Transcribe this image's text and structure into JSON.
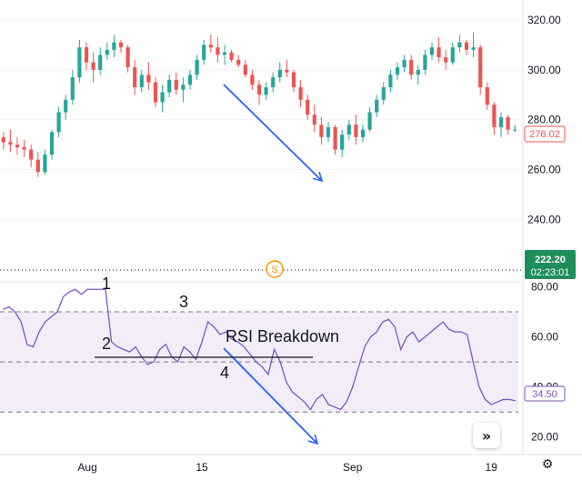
{
  "chart_data": [
    {
      "type": "candlestick",
      "y_ticks": [
        "320.00",
        "300.00",
        "280.00",
        "260.00",
        "240.00"
      ],
      "ylim": [
        215,
        328
      ],
      "last_price_label": "276.02",
      "current_price_label": "222.20",
      "countdown_label": "02:23:01",
      "dividend_marker": "S",
      "candles": [
        [
          273,
          275,
          268,
          271
        ],
        [
          271,
          276,
          267,
          270
        ],
        [
          270,
          273,
          266,
          269
        ],
        [
          269,
          272,
          265,
          268
        ],
        [
          268,
          270,
          261,
          264
        ],
        [
          264,
          267,
          257,
          259
        ],
        [
          259,
          268,
          258,
          266
        ],
        [
          266,
          276,
          264,
          275
        ],
        [
          275,
          285,
          273,
          283
        ],
        [
          283,
          290,
          280,
          288
        ],
        [
          288,
          300,
          286,
          297
        ],
        [
          297,
          312,
          295,
          309
        ],
        [
          309,
          311,
          300,
          303
        ],
        [
          303,
          307,
          295,
          300
        ],
        [
          300,
          309,
          298,
          306
        ],
        [
          306,
          311,
          304,
          308
        ],
        [
          308,
          314,
          305,
          311
        ],
        [
          311,
          312,
          307,
          309
        ],
        [
          309,
          310,
          299,
          301
        ],
        [
          301,
          304,
          290,
          293
        ],
        [
          293,
          300,
          291,
          298
        ],
        [
          298,
          303,
          292,
          295
        ],
        [
          295,
          297,
          285,
          287
        ],
        [
          287,
          294,
          283,
          291
        ],
        [
          291,
          298,
          289,
          296
        ],
        [
          296,
          299,
          290,
          292
        ],
        [
          292,
          297,
          287,
          294
        ],
        [
          294,
          300,
          292,
          298
        ],
        [
          298,
          306,
          296,
          304
        ],
        [
          304,
          312,
          302,
          310
        ],
        [
          310,
          314,
          307,
          309
        ],
        [
          309,
          313,
          303,
          306
        ],
        [
          306,
          310,
          302,
          307
        ],
        [
          307,
          308,
          303,
          304
        ],
        [
          304,
          306,
          301,
          302
        ],
        [
          302,
          304,
          297,
          298
        ],
        [
          298,
          300,
          292,
          294
        ],
        [
          294,
          296,
          286,
          290
        ],
        [
          290,
          295,
          288,
          293
        ],
        [
          293,
          299,
          291,
          297
        ],
        [
          297,
          303,
          295,
          300
        ],
        [
          300,
          304,
          297,
          299
        ],
        [
          299,
          300,
          291,
          293
        ],
        [
          293,
          296,
          285,
          288
        ],
        [
          288,
          290,
          280,
          282
        ],
        [
          282,
          286,
          275,
          278
        ],
        [
          278,
          281,
          270,
          273
        ],
        [
          273,
          279,
          271,
          277
        ],
        [
          277,
          278,
          266,
          268
        ],
        [
          268,
          276,
          265,
          274
        ],
        [
          274,
          280,
          272,
          278
        ],
        [
          278,
          282,
          270,
          273
        ],
        [
          273,
          278,
          271,
          276
        ],
        [
          276,
          285,
          275,
          283
        ],
        [
          283,
          290,
          281,
          288
        ],
        [
          288,
          295,
          286,
          293
        ],
        [
          293,
          300,
          291,
          298
        ],
        [
          298,
          303,
          296,
          301
        ],
        [
          301,
          306,
          299,
          304
        ],
        [
          304,
          306,
          296,
          298
        ],
        [
          298,
          302,
          294,
          300
        ],
        [
          300,
          308,
          298,
          306
        ],
        [
          306,
          311,
          304,
          309
        ],
        [
          309,
          313,
          303,
          305
        ],
        [
          305,
          308,
          300,
          303
        ],
        [
          303,
          311,
          302,
          309
        ],
        [
          309,
          314,
          307,
          311
        ],
        [
          311,
          312,
          306,
          308
        ],
        [
          308,
          315,
          305,
          309
        ],
        [
          309,
          310,
          290,
          293
        ],
        [
          293,
          295,
          284,
          286
        ],
        [
          286,
          287,
          274,
          277
        ],
        [
          277,
          283,
          273,
          281
        ],
        [
          281,
          282,
          274,
          276
        ],
        [
          276,
          278,
          275,
          276.02
        ]
      ]
    },
    {
      "type": "line",
      "indicator": "RSI",
      "y_ticks": [
        "80.00",
        "60.00",
        "40.00",
        "20.00"
      ],
      "ylim": [
        13,
        82
      ],
      "upper_band": 70,
      "mid_band": 50,
      "lower_band": 30,
      "last_value_label": "34.50",
      "x_tick_labels": [
        "Aug",
        "15",
        "Sep",
        "19"
      ],
      "x_tick_index": [
        14,
        33,
        58,
        81
      ],
      "series": [
        {
          "values": [
            71,
            72,
            70,
            66,
            57,
            56,
            62,
            66,
            68,
            70,
            76,
            78,
            79,
            77,
            79,
            79,
            79,
            79,
            58,
            56,
            55,
            54,
            56,
            52,
            49,
            50,
            55,
            57,
            52,
            50,
            56,
            54,
            51,
            58,
            66,
            64,
            61,
            62,
            59,
            58,
            56,
            53,
            50,
            48,
            45,
            55,
            50,
            42,
            38,
            36,
            34,
            31,
            35,
            37,
            33,
            32,
            31,
            34,
            40,
            48,
            56,
            60,
            62,
            66,
            67,
            64,
            55,
            60,
            62,
            58,
            60,
            62,
            64,
            66,
            63,
            62,
            62,
            61,
            50,
            40,
            35,
            33,
            34,
            35,
            35,
            34.5
          ]
        }
      ]
    }
  ],
  "annotations": {
    "label_1": "1",
    "label_2": "2",
    "label_3": "3",
    "label_4": "4",
    "breakdown_text": "RSI Breakdown"
  },
  "colors": {
    "up": "#26a69a",
    "down": "#ef5350",
    "rsi_line": "#7e57c2",
    "rsi_band_fill": "#ede7f6",
    "arrow": "#2962ff",
    "dividend": "#ff9800",
    "price_tag": "#1e8e5a"
  },
  "icons": {
    "scroll_button": "double-chevron-right-icon",
    "settings": "gear-icon"
  }
}
